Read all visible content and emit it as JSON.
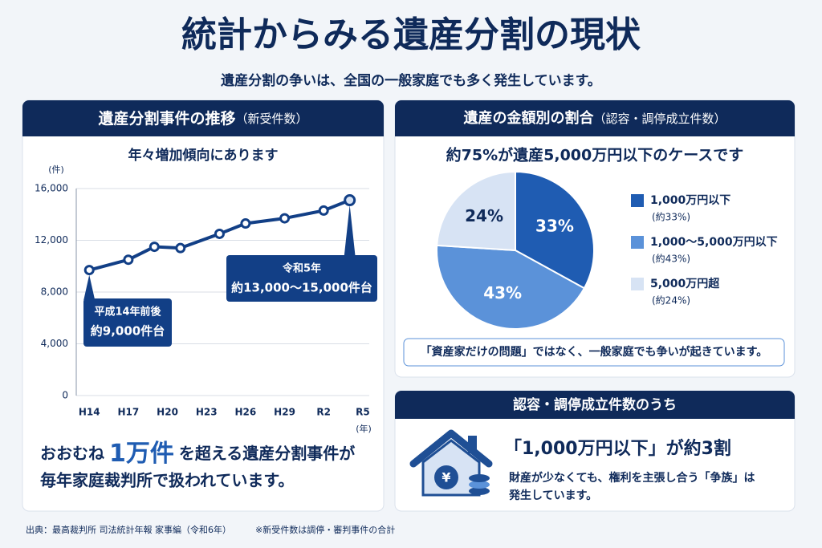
{
  "header": {
    "title": "統計からみる遺産分割の現状",
    "subtitle": "遺産分割の争いは、全国の一般家庭でも多く発生しています。"
  },
  "chart_data": [
    {
      "type": "line",
      "panel_title": "遺産分割事件の推移",
      "panel_subtitle": "（新受件数）",
      "title": "年々増加傾向にあります",
      "y_unit": "(件)",
      "x_unit": "(年)",
      "x": [
        14,
        17,
        19,
        21,
        24,
        26,
        29,
        32,
        34
      ],
      "values": [
        9700,
        10500,
        11500,
        11400,
        12500,
        13300,
        13700,
        14300,
        15100
      ],
      "color": "#123f86",
      "xlim": [
        13,
        35.5
      ],
      "xticks": [
        {
          "value": 14,
          "label": "H14"
        },
        {
          "value": 17,
          "label": "H17"
        },
        {
          "value": 20,
          "label": "H20"
        },
        {
          "value": 23,
          "label": "H23"
        },
        {
          "value": 26,
          "label": "H26"
        },
        {
          "value": 29,
          "label": "H29"
        },
        {
          "value": 32,
          "label": "R2"
        },
        {
          "value": 35,
          "label": "R5"
        }
      ],
      "ylim": [
        0,
        16000
      ],
      "yticks": [
        0,
        {
          "value": 4000,
          "label": "4,000"
        },
        {
          "value": 8000,
          "label": "8,000"
        },
        {
          "value": 12000,
          "label": "12,000"
        },
        {
          "value": 16000,
          "label": "16,000"
        }
      ],
      "grid": true,
      "annotations": [
        {
          "lines": [
            "平成14年前後",
            "約9,000件台"
          ]
        },
        {
          "lines": [
            "令和5年",
            "約13,000～15,000件台"
          ]
        }
      ]
    },
    {
      "type": "pie",
      "panel_title": "遺産の金額別の割合",
      "panel_subtitle": "（認容・調停成立件数）",
      "title": "約75%が遺産5,000万円以下のケースです",
      "categories": [
        "1,000万円以下",
        "1,000～5,000万円以下",
        "5,000万円超"
      ],
      "category_notes": [
        "(約33%)",
        "(約43%)",
        "(約24%)"
      ],
      "values": [
        33,
        43,
        24
      ],
      "value_labels": [
        "33%",
        "43%",
        "24%"
      ],
      "colors": [
        "#1f5cb2",
        "#5b92d9",
        "#d7e3f4"
      ],
      "note": "「資産家だけの問題」ではなく、一般家庭でも争いが起きています。"
    }
  ],
  "summary": {
    "lead": "おおむね",
    "emphasis": "1万件",
    "trail": "を超える遺産分割事件が",
    "line2": "毎年家庭裁判所で扱われています。"
  },
  "fact": {
    "heading": "認容・調停成立件数のうち",
    "headline": "「1,000万円以下」が約3割",
    "body": [
      "財産が少なくても、権利を主張し合う「争族」は",
      "発生しています。"
    ]
  },
  "footer": {
    "source": "出典：最高裁判所 司法統計年報 家事編（令和6年）",
    "note": "※新受件数は調停・審判事件の合計"
  }
}
